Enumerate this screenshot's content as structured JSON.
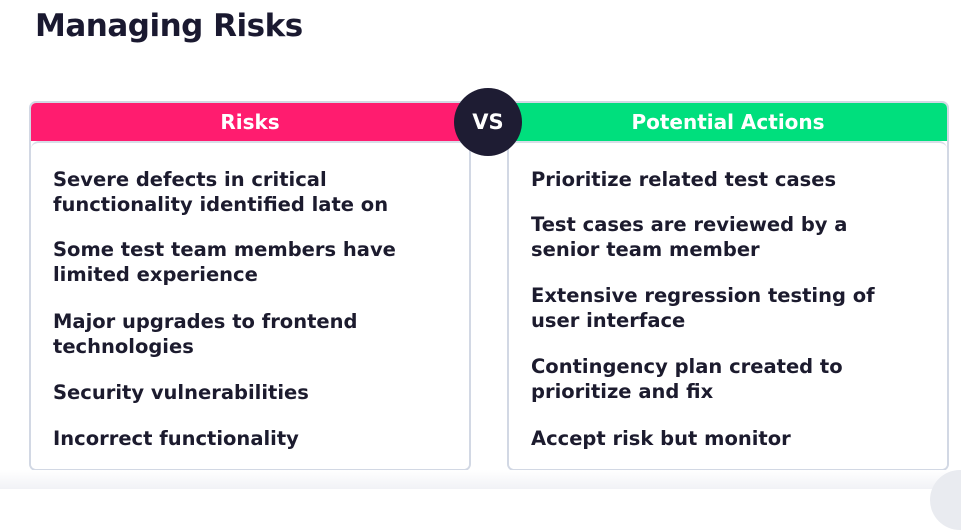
{
  "slide": {
    "title": "Managing Risks",
    "vs_label": "VS"
  },
  "risks": {
    "header": "Risks",
    "items": [
      [
        "Severe defects in critical",
        "functionality identified late on"
      ],
      [
        "Some test team members have",
        "limited experience"
      ],
      [
        "Major upgrades to frontend",
        "technologies"
      ],
      [
        "Security vulnerabilities"
      ],
      [
        "Incorrect functionality"
      ]
    ]
  },
  "actions": {
    "header": "Potential Actions",
    "items": [
      [
        "Prioritize related test cases"
      ],
      [
        "Test cases are reviewed by a",
        "senior team member"
      ],
      [
        "Extensive regression testing of",
        "user interface"
      ],
      [
        "Contingency plan created to",
        "prioritize and fix"
      ],
      [
        "Accept risk but monitor"
      ]
    ]
  },
  "colors": {
    "risks_header": "#ff1c6f",
    "actions_header": "#00df7d",
    "vs_badge": "#1e1c33",
    "text": "#1c1b2e"
  }
}
